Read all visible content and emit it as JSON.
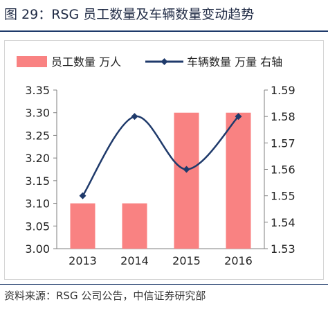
{
  "figure_title": "图 29：RSG 员工数量及车辆数量变动趋势",
  "source_note": "资料来源：RSG 公司公告，中信证券研究部",
  "colors": {
    "bar": "#f98282",
    "line": "#1f3a6b",
    "title_rule": "#1f3a6b"
  },
  "chart_data": {
    "type": "bar+line",
    "categories": [
      "2013",
      "2014",
      "2015",
      "2016"
    ],
    "series": [
      {
        "name": "员工数量  万人",
        "type": "bar",
        "axis": "left",
        "values": [
          3.1,
          3.1,
          3.3,
          3.3
        ]
      },
      {
        "name": "车辆数量  万量  右轴",
        "type": "line",
        "axis": "right",
        "smooth": true,
        "values": [
          1.55,
          1.58,
          1.56,
          1.58
        ]
      }
    ],
    "y_left": {
      "min": 3.0,
      "max": 3.35,
      "ticks": [
        "3.00",
        "3.05",
        "3.10",
        "3.15",
        "3.20",
        "3.25",
        "3.30",
        "3.35"
      ]
    },
    "y_right": {
      "min": 1.53,
      "max": 1.59,
      "ticks": [
        "1.53",
        "1.54",
        "1.55",
        "1.56",
        "1.57",
        "1.58",
        "1.59"
      ]
    },
    "grid": false,
    "legend_position": "top"
  }
}
